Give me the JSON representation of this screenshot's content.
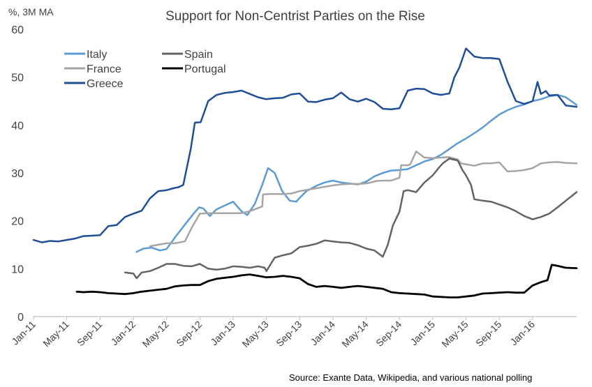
{
  "chart_data": {
    "type": "line",
    "title": "Support for Non-Centrist  Parties on the Rise",
    "unit_label": "%, 3M MA",
    "source": "Source: Exante Data, Wikipedia, and various national polling",
    "ylim": [
      0,
      60
    ],
    "yticks": [
      "0",
      "10",
      "20",
      "30",
      "40",
      "50",
      "60"
    ],
    "xlim": [
      0,
      65.3
    ],
    "xticks": [
      {
        "label": "Jan-11",
        "month": 0
      },
      {
        "label": "May-11",
        "month": 4
      },
      {
        "label": "Sep-11",
        "month": 8
      },
      {
        "label": "Jan-12",
        "month": 12
      },
      {
        "label": "May-12",
        "month": 16
      },
      {
        "label": "Sep-12",
        "month": 20
      },
      {
        "label": "Jan-13",
        "month": 24
      },
      {
        "label": "May-13",
        "month": 28
      },
      {
        "label": "Sep-13",
        "month": 32
      },
      {
        "label": "Jan-14",
        "month": 36
      },
      {
        "label": "May-14",
        "month": 40
      },
      {
        "label": "Sep-14",
        "month": 44
      },
      {
        "label": "Jan-15",
        "month": 48
      },
      {
        "label": "May-15",
        "month": 52
      },
      {
        "label": "Sep-15",
        "month": 56
      },
      {
        "label": "Jan-16",
        "month": 60
      }
    ],
    "grid": false,
    "legend_position": "top-left",
    "series": [
      {
        "name": "Italy",
        "color": "#5B9BD5",
        "width": 2.5,
        "x": [
          12.4,
          13.2,
          14.2,
          15.2,
          16.0,
          17.0,
          18.2,
          19.3,
          19.9,
          20.4,
          21.2,
          22.0,
          23.0,
          24.0,
          25.0,
          25.7,
          26.6,
          27.5,
          28.2,
          29.0,
          29.9,
          30.8,
          31.6,
          32.0,
          32.8,
          34.0,
          35.0,
          36.0,
          37.0,
          38.0,
          39.0,
          40.0,
          41.0,
          42.0,
          43.0,
          44.0,
          45.0,
          46.0,
          47.0,
          48.0,
          49.0,
          50.0,
          51.0,
          52.0,
          53.0,
          54.0,
          55.0,
          56.0,
          57.0,
          58.0,
          59.0,
          60.0,
          61.0,
          62.0,
          63.0,
          64.0,
          65.3
        ],
        "y": [
          13.5,
          14.2,
          14.4,
          13.8,
          14.1,
          16.5,
          19.2,
          21.6,
          22.8,
          22.6,
          21.0,
          22.4,
          23.2,
          24.0,
          22.0,
          21.2,
          23.5,
          27.5,
          31.0,
          30.0,
          26.2,
          24.2,
          24.0,
          24.8,
          26.2,
          27.3,
          28.0,
          28.4,
          28.0,
          27.8,
          27.6,
          28.2,
          29.3,
          30.0,
          30.5,
          30.6,
          30.8,
          31.6,
          32.4,
          32.9,
          33.8,
          35.0,
          36.2,
          37.2,
          38.3,
          39.5,
          40.9,
          42.2,
          43.1,
          43.8,
          44.3,
          45.0,
          45.4,
          46.0,
          46.3,
          45.8,
          44.2
        ]
      },
      {
        "name": "France",
        "color": "#A5A5A5",
        "width": 2.5,
        "x": [
          14.0,
          15.0,
          16.0,
          17.0,
          18.2,
          19.0,
          20.0,
          21.0,
          22.0,
          23.0,
          24.0,
          25.0,
          26.0,
          26.6,
          27.5,
          27.6,
          28.2,
          29.0,
          30.0,
          31.0,
          32.0,
          33.0,
          34.0,
          35.0,
          36.0,
          37.0,
          38.0,
          39.0,
          40.0,
          41.0,
          41.0,
          42.0,
          42.5,
          43.0,
          44.0,
          44.2,
          45.0,
          45.3,
          46.0,
          47.0,
          48.0,
          49.0,
          50.0,
          51.0,
          51.4,
          52.0,
          53.0,
          54.0,
          55.0,
          56.0,
          57.0,
          58.0,
          59.0,
          60.0,
          61.0,
          62.0,
          63.0,
          64.0,
          65.3
        ],
        "y": [
          14.7,
          15.0,
          15.3,
          15.3,
          15.7,
          18.5,
          21.5,
          21.6,
          21.6,
          21.6,
          21.6,
          21.6,
          22.0,
          22.4,
          23.0,
          25.5,
          25.6,
          25.6,
          25.6,
          25.7,
          26.2,
          26.5,
          26.8,
          27.1,
          27.4,
          27.6,
          27.7,
          27.7,
          27.8,
          28.2,
          28.3,
          28.4,
          28.4,
          28.4,
          29.0,
          31.6,
          31.6,
          31.8,
          34.5,
          33.2,
          33.1,
          33.2,
          33.3,
          32.8,
          32.0,
          31.8,
          31.5,
          32.0,
          32.0,
          32.2,
          30.3,
          30.4,
          30.6,
          31.0,
          32.0,
          32.2,
          32.3,
          32.1,
          32.0
        ]
      },
      {
        "name": "Greece",
        "color": "#1F4E99",
        "width": 2.5,
        "x": [
          0.0,
          1.0,
          2.0,
          3.0,
          4.0,
          5.0,
          6.0,
          7.0,
          8.0,
          9.0,
          10.0,
          11.0,
          12.0,
          13.0,
          14.0,
          15.0,
          16.0,
          16.8,
          17.4,
          18.0,
          18.9,
          19.4,
          20.1,
          21.0,
          22.0,
          23.0,
          24.0,
          25.0,
          26.0,
          27.0,
          28.0,
          29.0,
          30.0,
          31.0,
          32.0,
          33.0,
          34.0,
          35.0,
          36.0,
          37.0,
          38.0,
          39.0,
          40.0,
          41.0,
          42.0,
          43.0,
          44.0,
          45.0,
          46.0,
          47.0,
          48.0,
          49.0,
          50.0,
          50.6,
          51.2,
          52.0,
          53.0,
          54.0,
          55.0,
          56.0,
          57.0,
          58.0,
          59.0,
          60.0,
          60.6,
          61.0,
          61.6,
          62.0,
          63.0,
          64.0,
          65.3
        ],
        "y": [
          16.0,
          15.5,
          15.8,
          15.7,
          16.0,
          16.3,
          16.8,
          16.9,
          17.0,
          18.9,
          19.1,
          20.8,
          21.5,
          22.1,
          24.7,
          26.2,
          26.4,
          26.8,
          27.0,
          27.5,
          35.0,
          40.5,
          40.6,
          45.0,
          46.3,
          46.7,
          46.9,
          47.2,
          46.5,
          45.8,
          45.4,
          45.6,
          45.7,
          46.4,
          46.6,
          44.9,
          44.8,
          45.3,
          45.6,
          46.8,
          45.4,
          44.9,
          45.5,
          44.8,
          43.4,
          43.3,
          43.5,
          47.2,
          47.6,
          47.5,
          46.6,
          46.3,
          46.6,
          50.0,
          52.0,
          56.0,
          54.3,
          54.0,
          54.0,
          53.8,
          49.0,
          45.0,
          44.4,
          45.0,
          49.0,
          46.5,
          47.1,
          46.2,
          46.3,
          44.1,
          43.8
        ]
      },
      {
        "name": "Spain",
        "color": "#636363",
        "width": 2.5,
        "x": [
          11.0,
          12.0,
          12.4,
          13.0,
          14.0,
          15.0,
          16.0,
          17.0,
          18.0,
          19.0,
          20.0,
          21.0,
          22.0,
          23.0,
          24.0,
          25.0,
          26.0,
          27.0,
          27.8,
          28.0,
          29.0,
          30.0,
          31.0,
          32.0,
          33.0,
          34.0,
          35.0,
          36.0,
          37.0,
          38.0,
          39.0,
          40.0,
          41.0,
          42.0,
          42.6,
          43.2,
          44.0,
          44.5,
          45.0,
          46.0,
          47.0,
          48.0,
          48.7,
          49.2,
          50.0,
          51.0,
          51.6,
          52.0,
          52.6,
          53.0,
          54.0,
          55.0,
          56.0,
          57.0,
          58.0,
          59.0,
          60.0,
          61.0,
          62.0,
          63.0,
          64.0,
          65.3
        ],
        "y": [
          9.2,
          9.0,
          8.0,
          9.2,
          9.5,
          10.2,
          11.0,
          11.0,
          10.6,
          10.5,
          11.0,
          10.0,
          9.8,
          10.0,
          10.5,
          10.4,
          10.2,
          10.5,
          10.2,
          9.5,
          12.3,
          12.8,
          13.2,
          14.5,
          14.8,
          15.2,
          15.9,
          15.7,
          15.5,
          15.4,
          14.9,
          14.2,
          13.8,
          12.5,
          15.0,
          19.0,
          21.9,
          26.2,
          26.4,
          26.0,
          28.0,
          29.5,
          31.0,
          32.0,
          33.0,
          32.6,
          30.5,
          29.5,
          27.5,
          24.5,
          24.2,
          24.0,
          23.4,
          22.8,
          22.0,
          21.0,
          20.3,
          20.8,
          21.5,
          22.8,
          24.2,
          26.0
        ]
      },
      {
        "name": "Portugal",
        "color": "#000000",
        "width": 2.8,
        "x": [
          5.2,
          6.0,
          7.0,
          8.0,
          9.0,
          10.0,
          11.0,
          12.0,
          13.0,
          14.0,
          15.0,
          16.0,
          17.0,
          18.0,
          19.0,
          20.0,
          21.0,
          22.0,
          23.0,
          24.0,
          25.0,
          26.0,
          27.0,
          28.0,
          29.0,
          30.0,
          31.0,
          32.0,
          33.0,
          34.0,
          35.0,
          36.0,
          37.0,
          38.0,
          39.0,
          40.0,
          41.0,
          42.0,
          43.0,
          44.0,
          45.0,
          46.0,
          47.0,
          48.0,
          49.0,
          50.0,
          51.0,
          52.0,
          53.0,
          54.0,
          55.0,
          56.0,
          57.0,
          58.0,
          59.0,
          60.0,
          61.0,
          61.8,
          62.3,
          63.0,
          64.0,
          65.3
        ],
        "y": [
          5.2,
          5.1,
          5.2,
          5.1,
          4.9,
          4.8,
          4.7,
          4.9,
          5.2,
          5.4,
          5.6,
          5.8,
          6.3,
          6.5,
          6.6,
          6.6,
          7.4,
          7.9,
          8.1,
          8.3,
          8.6,
          8.8,
          8.5,
          8.2,
          8.3,
          8.5,
          8.3,
          8.0,
          6.8,
          6.2,
          6.4,
          6.2,
          6.0,
          6.2,
          6.4,
          6.2,
          6.0,
          5.8,
          5.1,
          4.9,
          4.8,
          4.7,
          4.6,
          4.2,
          4.1,
          4.0,
          4.0,
          4.2,
          4.4,
          4.8,
          4.9,
          5.0,
          5.1,
          5.0,
          5.0,
          6.5,
          7.2,
          7.6,
          10.8,
          10.6,
          10.2,
          10.1
        ]
      }
    ]
  }
}
